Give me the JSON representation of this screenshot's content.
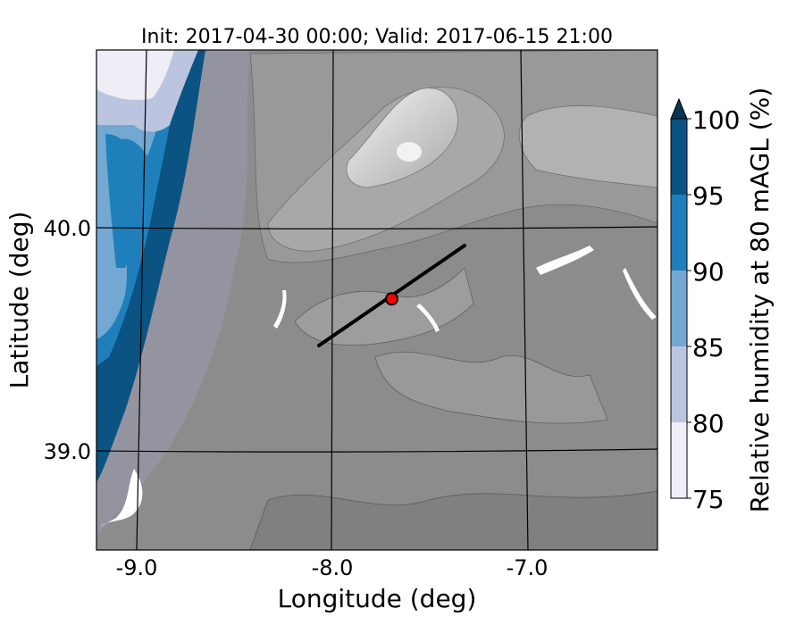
{
  "chart_data": {
    "type": "heatmap",
    "title": "Init: 2017-04-30 00:00; Valid: 2017-06-15 21:00",
    "xlabel": "Longitude (deg)",
    "ylabel": "Latitude (deg)",
    "xlim": [
      -9.25,
      -6.4
    ],
    "ylim": [
      38.55,
      40.8
    ],
    "x_ticks": [
      {
        "value": -9.0,
        "label": "-9.0"
      },
      {
        "value": -8.0,
        "label": "-8.0"
      },
      {
        "value": -7.0,
        "label": "-7.0"
      }
    ],
    "y_ticks": [
      {
        "value": 40.0,
        "label": "40.0"
      },
      {
        "value": 39.0,
        "label": "39.0"
      }
    ],
    "grid": true,
    "colorbar": {
      "label": "Relative humidity at 80 mAGL (%)",
      "extend": "max",
      "levels": [
        75,
        80,
        85,
        90,
        95,
        100
      ],
      "tick_labels": [
        "75",
        "80",
        "85",
        "90",
        "95",
        "100"
      ],
      "colors": [
        "#efedf5",
        "#bcc5e0",
        "#73a8d3",
        "#1f7fba",
        "#0a5382"
      ],
      "over_color": "#08344f"
    },
    "background": "terrain shaded relief (grey)",
    "cross_section_line": {
      "start": {
        "lon": -8.12,
        "lat": 39.47
      },
      "end": {
        "lon": -7.38,
        "lat": 39.92
      },
      "color": "#000000"
    },
    "marker": {
      "lon": -7.75,
      "lat": 39.68,
      "color": "#ff0000"
    }
  }
}
